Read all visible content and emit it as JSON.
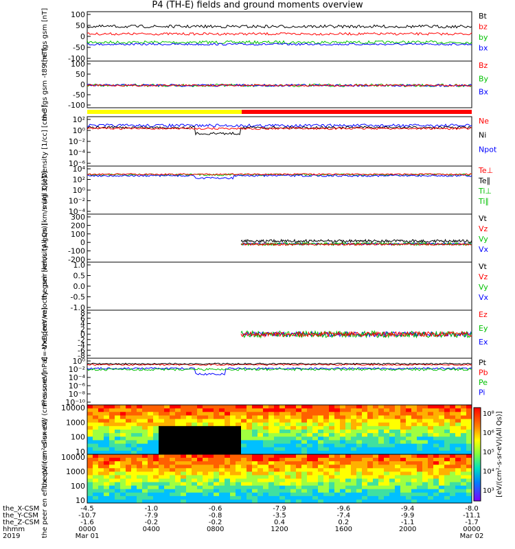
{
  "title": "P4 (TH-E) fields and ground moments overview",
  "colors": {
    "black": "#000000",
    "red": "#ff0000",
    "green": "#00c000",
    "blue": "#0000ff",
    "yellow": "#ffff00"
  },
  "time_axis": {
    "rows": [
      {
        "label": "the_X-CSM",
        "values": [
          "-4.5",
          "-1.0",
          "-0.6",
          "-7.9",
          "-9.6",
          "-9.4",
          "-8.0"
        ]
      },
      {
        "label": "the_Y-CSM",
        "values": [
          "-10.7",
          "-7.9",
          "-0.8",
          "-3.5",
          "-7.4",
          "-9.9",
          "-11.1"
        ]
      },
      {
        "label": "the_Z-CSM",
        "values": [
          "-1.6",
          "-0.2",
          "-0.2",
          "0.4",
          "0.2",
          "-1.1",
          "-1.7"
        ]
      },
      {
        "label": "hhmm",
        "values": [
          "0000",
          "0400",
          "0800",
          "1200",
          "1600",
          "2000",
          "0000"
        ]
      }
    ],
    "year": "2019",
    "start_date": "Mar 01",
    "end_date": "Mar 02"
  },
  "chart_data": [
    {
      "type": "line",
      "ylabel": "the fgs gsm [nT]",
      "ylim": [
        -100,
        100
      ],
      "yticks": [
        "100",
        "50",
        "0",
        "-50",
        "-100"
      ],
      "series": [
        {
          "name": "Bt",
          "color": "#000000"
        },
        {
          "name": "bz",
          "color": "#ff0000"
        },
        {
          "name": "by",
          "color": "#00c000"
        },
        {
          "name": "bx",
          "color": "#0000ff"
        }
      ]
    },
    {
      "type": "line",
      "ylabel": "the fgs gsm -t89 [nT]",
      "ylim": [
        -125,
        100
      ],
      "yticks": [
        "100",
        "50",
        "0",
        "-50",
        "-100"
      ],
      "series": [
        {
          "name": "Bz",
          "color": "#ff0000"
        },
        {
          "name": "By",
          "color": "#00c000"
        },
        {
          "name": "Bx",
          "color": "#0000ff"
        }
      ]
    },
    {
      "type": "line",
      "ylabel": "Density [1/cc] [cm-3]",
      "log": true,
      "yticks": [
        "10²",
        "10⁰",
        "10⁻²",
        "10⁻⁴",
        "10⁻⁶"
      ],
      "series": [
        {
          "name": "Ne",
          "color": "#ff0000"
        },
        {
          "name": "Ni",
          "color": "#000000"
        },
        {
          "name": "Npot",
          "color": "#0000ff"
        }
      ]
    },
    {
      "type": "line",
      "ylabel": "mag 3 [eV]",
      "log": true,
      "yticks": [
        "10⁴",
        "10²",
        "10⁰",
        "10⁻²",
        "10⁻⁴"
      ],
      "series": [
        {
          "name": "Te⊥",
          "color": "#ff0000"
        },
        {
          "name": "Te∥",
          "color": "#000000"
        },
        {
          "name": "Ti⊥",
          "color": "#00c000"
        },
        {
          "name": "Ti∥",
          "color": "#00c000"
        }
      ]
    },
    {
      "type": "line",
      "ylabel": "the peir velocity gsm [km/s (All Qs)]",
      "ylim": [
        -200,
        300
      ],
      "yticks": [
        "300",
        "200",
        "100",
        "0",
        "-100",
        "-200"
      ],
      "series": [
        {
          "name": "Vt",
          "color": "#000000"
        },
        {
          "name": "Vz",
          "color": "#ff0000"
        },
        {
          "name": "Vy",
          "color": "#00c000"
        },
        {
          "name": "Vx",
          "color": "#0000ff"
        }
      ]
    },
    {
      "type": "line",
      "ylabel": "the peer velocity gsm [km/s (All Qs)]",
      "ylim": [
        -1.0,
        1.0
      ],
      "yticks": [
        "1.0",
        "0.5",
        "0.0",
        "-0.5",
        "-1.0"
      ],
      "series": [
        {
          "name": "Vt",
          "color": "#000000"
        },
        {
          "name": "Vz",
          "color": "#ff0000"
        },
        {
          "name": "Vy",
          "color": "#00c000"
        },
        {
          "name": "Vx",
          "color": "#0000ff"
        }
      ]
    },
    {
      "type": "line",
      "ylabel": "E=-VxB [mV/m]",
      "ylim": [
        -8,
        8
      ],
      "yticks": [
        "8",
        "6",
        "4",
        "2",
        "0",
        "-2",
        "-4",
        "-6",
        "-8"
      ],
      "series": [
        {
          "name": "Ez",
          "color": "#ff0000"
        },
        {
          "name": "Ey",
          "color": "#00c000"
        },
        {
          "name": "Ex",
          "color": "#0000ff"
        }
      ]
    },
    {
      "type": "line",
      "ylabel": "Pressure [nPa]",
      "log": true,
      "yticks": [
        "10⁰",
        "10⁻²",
        "10⁻⁴",
        "10⁻⁶",
        "10⁻⁸",
        "10⁻¹⁰"
      ],
      "series": [
        {
          "name": "Pt",
          "color": "#000000"
        },
        {
          "name": "Pb",
          "color": "#ff0000"
        },
        {
          "name": "Pe",
          "color": "#00c000"
        },
        {
          "name": "Pi",
          "color": "#0000ff"
        }
      ]
    },
    {
      "type": "heatmap",
      "ylabel": "the peir en eflux eV/ (cm²-s-sr-eV)",
      "yticks": [
        "10000",
        "1000",
        "100",
        "10"
      ]
    },
    {
      "type": "heatmap",
      "ylabel": "the peer en eflux eV/ (cm²-s-sr-eV)",
      "yticks": [
        "10000",
        "1000",
        "100",
        "10"
      ]
    }
  ],
  "colorbar": {
    "label": "[eV/(cm²-s-sr-eV)(All Qs)]",
    "ticks": [
      "10⁸",
      "10⁶",
      "10⁵",
      "10⁴",
      "10³"
    ]
  }
}
